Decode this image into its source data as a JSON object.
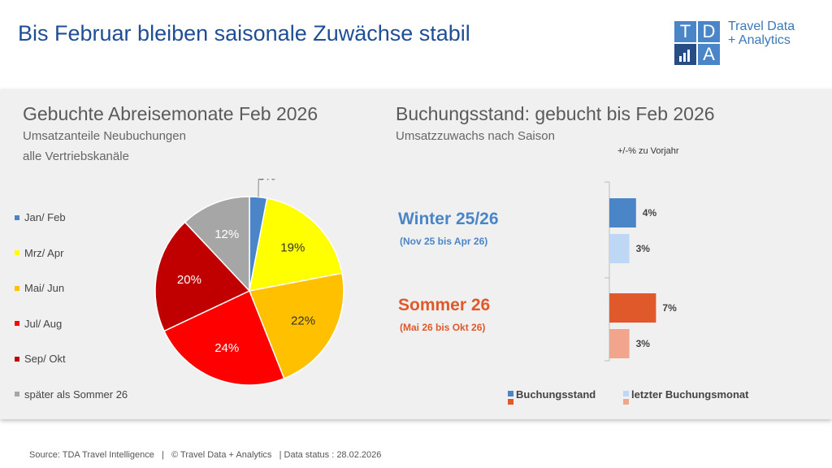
{
  "header": {
    "title": "Bis Februar bleiben saisonale Zuwächse stabil",
    "logo_letters": [
      "T",
      "D",
      "A"
    ],
    "logo_line1": "Travel Data",
    "logo_line2": "+ Analytics"
  },
  "chart_data": [
    {
      "type": "pie",
      "title": "Gebuchte Abreisemonate Feb 2026",
      "subtitle_line1": "Umsatzanteile Neubuchungen",
      "subtitle_line2": "alle Vertriebskanäle",
      "categories": [
        "Jan/ Feb",
        "Mrz/ Apr",
        "Mai/ Jun",
        "Jul/ Aug",
        "Sep/ Okt",
        "später als Sommer 26"
      ],
      "values": [
        3,
        19,
        22,
        24,
        20,
        12
      ],
      "labels": [
        "3%",
        "19%",
        "22%",
        "24%",
        "20%",
        "12%"
      ],
      "colors": [
        "#4a86c7",
        "#ffff00",
        "#ffc000",
        "#ff0000",
        "#c00000",
        "#a6a6a6"
      ],
      "legend_position": "left"
    },
    {
      "type": "bar",
      "orientation": "horizontal",
      "title": "Buchungsstand: gebucht bis Feb 2026",
      "subtitle": "Umsatzzuwachs nach Saison",
      "axis_note": "+/-% zu Vorjahr",
      "groups": [
        {
          "name": "Winter 25/26",
          "period": "(Nov 25 bis Apr 26)",
          "color": "#4a86c7",
          "values": [
            4,
            3
          ],
          "labels": [
            "4%",
            "3%"
          ],
          "colors": [
            "#4a86c7",
            "#bdd7f5"
          ]
        },
        {
          "name": "Sommer 26",
          "period": "(Mai 26 bis Okt 26)",
          "color": "#e0592a",
          "values": [
            7,
            3
          ],
          "labels": [
            "7%",
            "3%"
          ],
          "colors": [
            "#e0592a",
            "#f0a58c"
          ]
        }
      ],
      "series": [
        {
          "name": "Buchungsstand"
        },
        {
          "name": "letzter Buchungsmonat"
        }
      ],
      "legend_position": "bottom"
    }
  ],
  "footer": "Source: TDA Travel Intelligence   |   © Travel Data + Analytics   | Data status : 28.02.2026"
}
